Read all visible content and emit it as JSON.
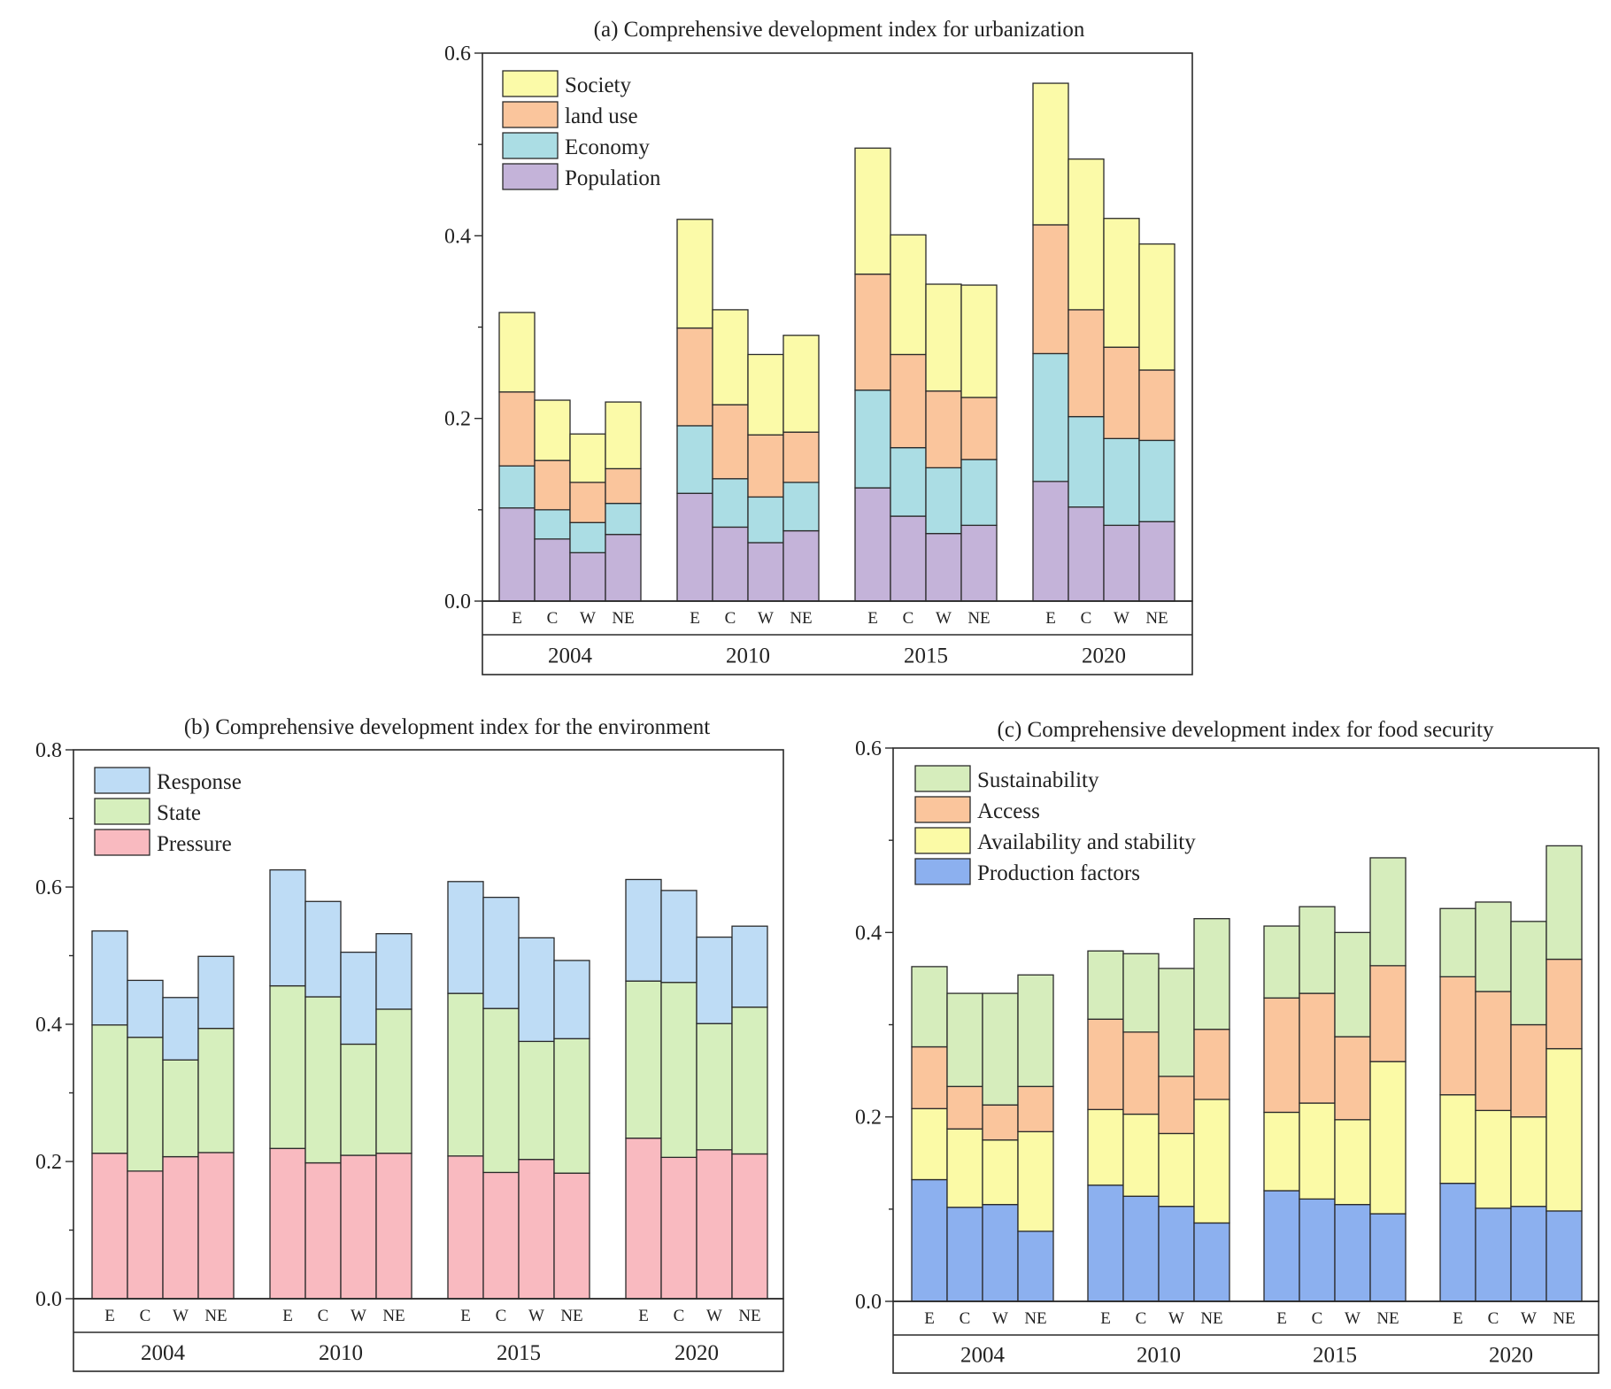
{
  "chart_data": [
    {
      "id": "a",
      "type": "bar",
      "stacked": true,
      "title": "(a) Comprehensive development index for urbanization",
      "ylim": [
        0,
        0.6
      ],
      "yticks": [
        "0.0",
        "0.2",
        "0.4",
        "0.6"
      ],
      "groups": [
        "2004",
        "2010",
        "2015",
        "2020"
      ],
      "categories": [
        "E",
        "C",
        "W",
        "NE"
      ],
      "legend_position": "top-left",
      "series": [
        {
          "name": "Population",
          "color": "#c4b3d9",
          "values": [
            [
              0.102,
              0.068,
              0.053,
              0.073
            ],
            [
              0.118,
              0.081,
              0.064,
              0.077
            ],
            [
              0.124,
              0.093,
              0.074,
              0.083
            ],
            [
              0.131,
              0.103,
              0.083,
              0.087
            ]
          ]
        },
        {
          "name": "Economy",
          "color": "#abdde4",
          "values": [
            [
              0.046,
              0.032,
              0.033,
              0.034
            ],
            [
              0.074,
              0.053,
              0.05,
              0.053
            ],
            [
              0.107,
              0.075,
              0.072,
              0.072
            ],
            [
              0.14,
              0.099,
              0.095,
              0.089
            ]
          ]
        },
        {
          "name": "land use",
          "color": "#fac59c",
          "values": [
            [
              0.081,
              0.054,
              0.044,
              0.038
            ],
            [
              0.107,
              0.081,
              0.068,
              0.055
            ],
            [
              0.127,
              0.102,
              0.084,
              0.068
            ],
            [
              0.141,
              0.117,
              0.1,
              0.077
            ]
          ]
        },
        {
          "name": "Society",
          "color": "#fbfaa8",
          "values": [
            [
              0.087,
              0.066,
              0.053,
              0.073
            ],
            [
              0.119,
              0.104,
              0.088,
              0.106
            ],
            [
              0.138,
              0.131,
              0.117,
              0.123
            ],
            [
              0.155,
              0.165,
              0.141,
              0.138
            ]
          ]
        }
      ],
      "legend_order": [
        "Society",
        "land use",
        "Economy",
        "Population"
      ]
    },
    {
      "id": "b",
      "type": "bar",
      "stacked": true,
      "title": "(b) Comprehensive development index for the  environment",
      "ylim": [
        0,
        0.8
      ],
      "yticks": [
        "0.0",
        "0.2",
        "0.4",
        "0.6",
        "0.8"
      ],
      "groups": [
        "2004",
        "2010",
        "2015",
        "2020"
      ],
      "categories": [
        "E",
        "C",
        "W",
        "NE"
      ],
      "legend_position": "top-left",
      "series": [
        {
          "name": "Pressure",
          "color": "#f9bac0",
          "values": [
            [
              0.212,
              0.186,
              0.207,
              0.213
            ],
            [
              0.219,
              0.198,
              0.209,
              0.212
            ],
            [
              0.208,
              0.184,
              0.203,
              0.183
            ],
            [
              0.234,
              0.206,
              0.217,
              0.211
            ]
          ]
        },
        {
          "name": "State",
          "color": "#d6efbd",
          "values": [
            [
              0.187,
              0.195,
              0.141,
              0.181
            ],
            [
              0.237,
              0.242,
              0.162,
              0.21
            ],
            [
              0.237,
              0.239,
              0.172,
              0.196
            ],
            [
              0.229,
              0.255,
              0.184,
              0.214
            ]
          ]
        },
        {
          "name": "Response",
          "color": "#bedcf5",
          "values": [
            [
              0.137,
              0.083,
              0.091,
              0.105
            ],
            [
              0.169,
              0.139,
              0.134,
              0.11
            ],
            [
              0.163,
              0.162,
              0.151,
              0.114
            ],
            [
              0.148,
              0.134,
              0.126,
              0.118
            ]
          ]
        }
      ],
      "legend_order": [
        "Response",
        "State",
        "Pressure"
      ]
    },
    {
      "id": "c",
      "type": "bar",
      "stacked": true,
      "title": "(c) Comprehensive development index for  food security",
      "ylim": [
        0,
        0.6
      ],
      "yticks": [
        "0.0",
        "0.2",
        "0.4",
        "0.6"
      ],
      "groups": [
        "2004",
        "2010",
        "2015",
        "2020"
      ],
      "categories": [
        "E",
        "C",
        "W",
        "NE"
      ],
      "legend_position": "top-left",
      "series": [
        {
          "name": "Production factors",
          "color": "#8cb0ef",
          "values": [
            [
              0.132,
              0.102,
              0.105,
              0.076
            ],
            [
              0.126,
              0.114,
              0.103,
              0.085
            ],
            [
              0.12,
              0.111,
              0.105,
              0.095
            ],
            [
              0.128,
              0.101,
              0.103,
              0.098
            ]
          ]
        },
        {
          "name": "Availability and stability",
          "color": "#fbfaa6",
          "values": [
            [
              0.077,
              0.085,
              0.07,
              0.108
            ],
            [
              0.082,
              0.089,
              0.079,
              0.134
            ],
            [
              0.085,
              0.104,
              0.092,
              0.165
            ],
            [
              0.096,
              0.106,
              0.097,
              0.176
            ]
          ]
        },
        {
          "name": "Access",
          "color": "#fac59c",
          "values": [
            [
              0.067,
              0.046,
              0.038,
              0.049
            ],
            [
              0.098,
              0.089,
              0.062,
              0.076
            ],
            [
              0.124,
              0.119,
              0.09,
              0.104
            ],
            [
              0.128,
              0.129,
              0.1,
              0.097
            ]
          ]
        },
        {
          "name": "Sustainability",
          "color": "#d6edbc",
          "values": [
            [
              0.087,
              0.101,
              0.121,
              0.121
            ],
            [
              0.074,
              0.085,
              0.117,
              0.12
            ],
            [
              0.078,
              0.094,
              0.113,
              0.117
            ],
            [
              0.074,
              0.097,
              0.112,
              0.123
            ]
          ]
        }
      ],
      "legend_order": [
        "Sustainability",
        "Access",
        "Availability and stability",
        "Production factors"
      ]
    }
  ]
}
